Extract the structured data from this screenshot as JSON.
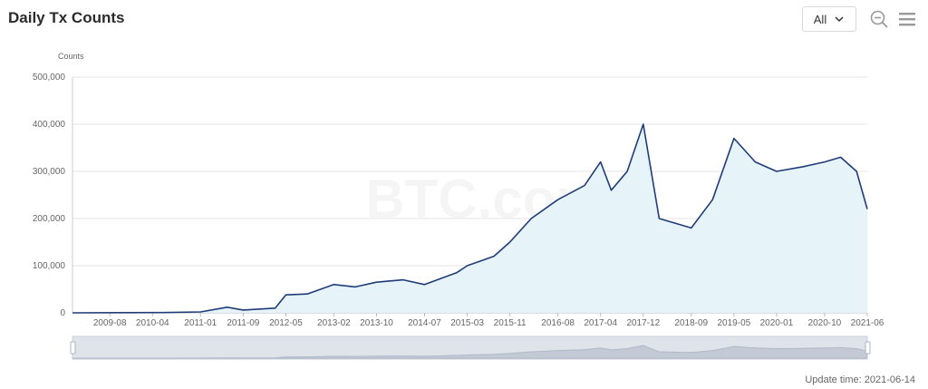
{
  "header": {
    "title": "Daily Tx Counts",
    "range_value": "All"
  },
  "icons": {
    "dropdown": "chevron-down-icon",
    "zoom": "zoom-out-icon",
    "menu": "hamburger-menu-icon"
  },
  "footer": {
    "update_label": "Update time: 2021-06-14"
  },
  "watermark": "BTC.com",
  "colors": {
    "line": "#1f3c78",
    "area": "#e6f4fa",
    "grid": "#e6e6e6",
    "slider_bg": "#dfe3ea",
    "slider_handle": "#a7b4c8"
  },
  "chart_data": {
    "type": "area",
    "ylabel": "Counts",
    "ylim": [
      0,
      500000
    ],
    "yticks": [
      "0",
      "100,000",
      "200,000",
      "300,000",
      "400,000",
      "500,000"
    ],
    "ytick_values": [
      0,
      100000,
      200000,
      300000,
      400000,
      500000
    ],
    "xlim": [
      "2009-01",
      "2021-06"
    ],
    "xticks": [
      "2009-08",
      "2010-04",
      "2011-01",
      "2011-09",
      "2012-05",
      "2013-02",
      "2013-10",
      "2014-07",
      "2015-03",
      "2015-11",
      "2016-08",
      "2017-04",
      "2017-12",
      "2018-09",
      "2019-05",
      "2020-01",
      "2020-10",
      "2021-06"
    ],
    "x": [
      "2009-01",
      "2010-06",
      "2011-01",
      "2011-06",
      "2011-09",
      "2012-03",
      "2012-05",
      "2012-09",
      "2013-02",
      "2013-06",
      "2013-10",
      "2014-03",
      "2014-07",
      "2015-01",
      "2015-03",
      "2015-08",
      "2015-11",
      "2016-03",
      "2016-08",
      "2017-01",
      "2017-04",
      "2017-06",
      "2017-09",
      "2017-12",
      "2018-03",
      "2018-09",
      "2019-01",
      "2019-05",
      "2019-09",
      "2020-01",
      "2020-06",
      "2020-10",
      "2021-01",
      "2021-04",
      "2021-06"
    ],
    "series": [
      {
        "values": [
          0,
          500,
          2000,
          12000,
          6000,
          10000,
          38000,
          40000,
          60000,
          55000,
          65000,
          70000,
          60000,
          85000,
          100000,
          120000,
          150000,
          200000,
          240000,
          270000,
          320000,
          260000,
          300000,
          400000,
          200000,
          180000,
          240000,
          370000,
          320000,
          300000,
          310000,
          320000,
          330000,
          300000,
          220000
        ]
      }
    ]
  }
}
